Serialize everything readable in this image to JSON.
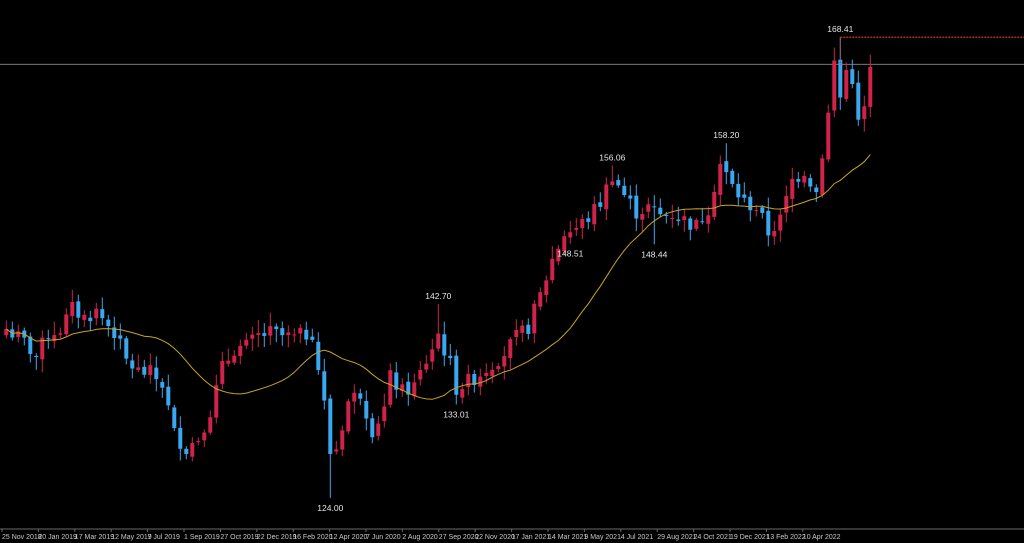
{
  "colors": {
    "background": "#000000",
    "bullish": "#d0234a",
    "bearish": "#3aa8f0",
    "moving_average": "#c9a227",
    "horizontal_line": "#8a8a8a",
    "resistance_line": "#c0392b",
    "axis": "#6a6a6a",
    "text": "#e6e6e6"
  },
  "chart_data": {
    "type": "candlestick",
    "title": "",
    "xlabel": "",
    "ylabel": "",
    "ylim": [
      121,
      172
    ],
    "grid": false,
    "x_tick_labels": [
      "25 Nov 2018",
      "20 Jan 2019",
      "17 Mar 2019",
      "12 May 2019",
      "7 Jul 2019",
      "1 Sep 2019",
      "27 Oct 2019",
      "22 Dec 2019",
      "16 Feb 2020",
      "12 Apr 2020",
      "7 Jun 2020",
      "2 Aug 2020",
      "27 Sep 2020",
      "22 Nov 2020",
      "17 Jan 2021",
      "14 Mar 2021",
      "9 May 2021",
      "4 Jul 2021",
      "29 Aug 2021",
      "24 Oct 2021",
      "19 Dec 2021",
      "13 Feb 2022",
      "10 Apr 2022"
    ],
    "price_annotations": [
      {
        "label": "168.41",
        "value": 168.41,
        "position": "above",
        "at_week": 139
      },
      {
        "label": "158.20",
        "value": 158.2,
        "position": "above",
        "at_week": 120
      },
      {
        "label": "156.06",
        "value": 156.06,
        "position": "above",
        "at_week": 101
      },
      {
        "label": "148.51",
        "value": 148.51,
        "position": "below",
        "at_week": 94
      },
      {
        "label": "148.44",
        "value": 148.44,
        "position": "below",
        "at_week": 108
      },
      {
        "label": "142.70",
        "value": 142.7,
        "position": "above",
        "at_week": 72
      },
      {
        "label": "133.01",
        "value": 133.01,
        "position": "below",
        "at_week": 75
      },
      {
        "label": "124.00",
        "value": 124.0,
        "position": "below",
        "at_week": 54
      }
    ],
    "horizontal_line": {
      "value": 165.8
    },
    "resistance_line": {
      "value": 168.41,
      "from_week": 139
    },
    "moving_average_window": 20,
    "waypoints": [
      [
        0,
        140.3
      ],
      [
        3,
        139.0
      ],
      [
        5,
        137.6
      ],
      [
        7,
        139.8
      ],
      [
        9,
        140.3
      ],
      [
        11,
        142.2
      ],
      [
        13,
        141.4
      ],
      [
        15,
        142.0
      ],
      [
        18,
        140.0
      ],
      [
        20,
        137.2
      ],
      [
        22,
        136.2
      ],
      [
        24,
        136.0
      ],
      [
        26,
        135.0
      ],
      [
        28,
        130.2
      ],
      [
        30,
        128.8
      ],
      [
        32,
        129.8
      ],
      [
        34,
        132.4
      ],
      [
        36,
        136.5
      ],
      [
        38,
        138.4
      ],
      [
        40,
        138.6
      ],
      [
        42,
        139.6
      ],
      [
        44,
        139.9
      ],
      [
        46,
        139.6
      ],
      [
        48,
        139.4
      ],
      [
        50,
        139.8
      ],
      [
        51,
        140.0
      ],
      [
        52,
        136.5
      ],
      [
        53,
        133.0
      ],
      [
        54,
        128.4
      ],
      [
        55,
        128.8
      ],
      [
        57,
        133.3
      ],
      [
        59,
        134.2
      ],
      [
        61,
        130.6
      ],
      [
        63,
        132.6
      ],
      [
        64,
        135.6
      ],
      [
        66,
        134.2
      ],
      [
        68,
        134.8
      ],
      [
        70,
        137.2
      ],
      [
        72,
        139.8
      ],
      [
        74,
        136.8
      ],
      [
        75,
        134.6
      ],
      [
        77,
        135.2
      ],
      [
        79,
        136.0
      ],
      [
        81,
        137.0
      ],
      [
        83,
        138.0
      ],
      [
        85,
        139.4
      ],
      [
        87,
        140.5
      ],
      [
        89,
        143.5
      ],
      [
        91,
        147.0
      ],
      [
        93,
        149.5
      ],
      [
        95,
        150.0
      ],
      [
        97,
        151.0
      ],
      [
        99,
        152.5
      ],
      [
        101,
        155.2
      ],
      [
        103,
        153.2
      ],
      [
        105,
        151.6
      ],
      [
        107,
        152.0
      ],
      [
        109,
        151.2
      ],
      [
        111,
        151.4
      ],
      [
        113,
        150.8
      ],
      [
        115,
        150.2
      ],
      [
        117,
        152.0
      ],
      [
        119,
        156.2
      ],
      [
        121,
        154.0
      ],
      [
        123,
        152.5
      ],
      [
        125,
        152.0
      ],
      [
        127,
        149.6
      ],
      [
        129,
        150.8
      ],
      [
        131,
        154.6
      ],
      [
        133,
        155.6
      ],
      [
        135,
        153.5
      ],
      [
        137,
        161.0
      ],
      [
        138,
        166.0
      ],
      [
        139,
        162.6
      ],
      [
        140,
        165.2
      ],
      [
        141,
        164.5
      ],
      [
        142,
        160.0
      ],
      [
        143,
        161.5
      ],
      [
        144,
        165.2
      ]
    ],
    "annotation_overrides": [
      [
        139,
        "high",
        168.41
      ],
      [
        120,
        "high",
        158.2
      ],
      [
        101,
        "high",
        156.06
      ],
      [
        94,
        "low",
        148.51
      ],
      [
        108,
        "low",
        148.44
      ],
      [
        72,
        "high",
        142.7
      ],
      [
        75,
        "low",
        133.01
      ],
      [
        54,
        "low",
        124.0
      ]
    ]
  }
}
